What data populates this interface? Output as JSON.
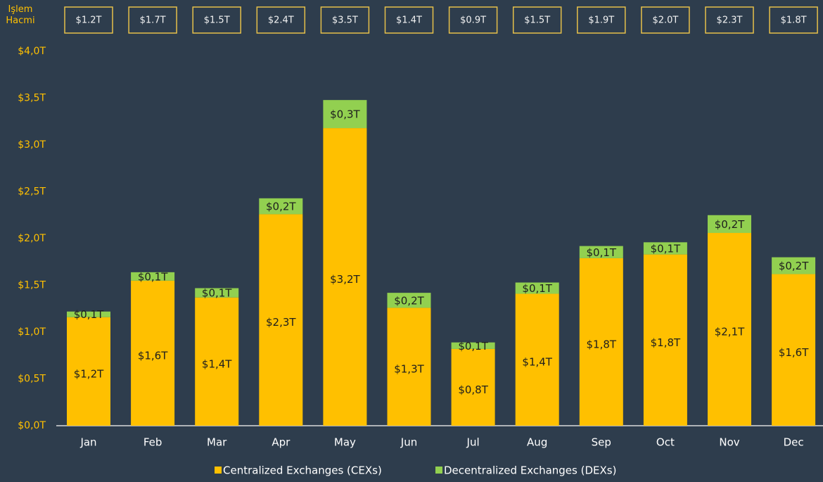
{
  "chart_data": {
    "type": "bar",
    "stacked": true,
    "volume_label": "İşlem Hacmi",
    "volume_boxes": [
      "$1.2T",
      "$1.7T",
      "$1.5T",
      "$2.4T",
      "$3.5T",
      "$1.4T",
      "$0.9T",
      "$1.5T",
      "$1.9T",
      "$2.0T",
      "$2.3T",
      "$1.8T"
    ],
    "categories": [
      "Jan",
      "Feb",
      "Mar",
      "Apr",
      "May",
      "Jun",
      "Jul",
      "Aug",
      "Sep",
      "Oct",
      "Nov",
      "Dec"
    ],
    "series": [
      {
        "name": "Centralized Exchanges (CEXs)",
        "color": "#ffc000",
        "values": [
          1.16,
          1.55,
          1.37,
          2.26,
          3.18,
          1.26,
          0.82,
          1.41,
          1.79,
          1.83,
          2.06,
          1.62
        ],
        "value_labels": [
          "$1,2T",
          "$1,6T",
          "$1,4T",
          "$2,3T",
          "$3,2T",
          "$1,3T",
          "$0,8T",
          "$1,4T",
          "$1,8T",
          "$1,8T",
          "$2,1T",
          "$1,6T"
        ]
      },
      {
        "name": "Decentralized Exchanges (DEXs)",
        "color": "#92d050",
        "values": [
          0.06,
          0.09,
          0.1,
          0.17,
          0.3,
          0.16,
          0.07,
          0.12,
          0.13,
          0.13,
          0.19,
          0.18
        ],
        "value_labels": [
          "$0,1T",
          "$0,1T",
          "$0,1T",
          "$0,2T",
          "$0,3T",
          "$0,2T",
          "$0,1T",
          "$0,1T",
          "$0,1T",
          "$0,1T",
          "$0,2T",
          "$0,2T"
        ]
      }
    ],
    "ylim": [
      0,
      4
    ],
    "yticks": [
      {
        "value": 0,
        "label": "$0,0T"
      },
      {
        "value": 0.5,
        "label": "$0,5T"
      },
      {
        "value": 1,
        "label": "$1,0T"
      },
      {
        "value": 1.5,
        "label": "$1,5T"
      },
      {
        "value": 2,
        "label": "$2,0T"
      },
      {
        "value": 2.5,
        "label": "$2,5T"
      },
      {
        "value": 3,
        "label": "$3,0T"
      },
      {
        "value": 3.5,
        "label": "$3,5T"
      },
      {
        "value": 4,
        "label": "$4,0T"
      }
    ],
    "grid": false
  }
}
